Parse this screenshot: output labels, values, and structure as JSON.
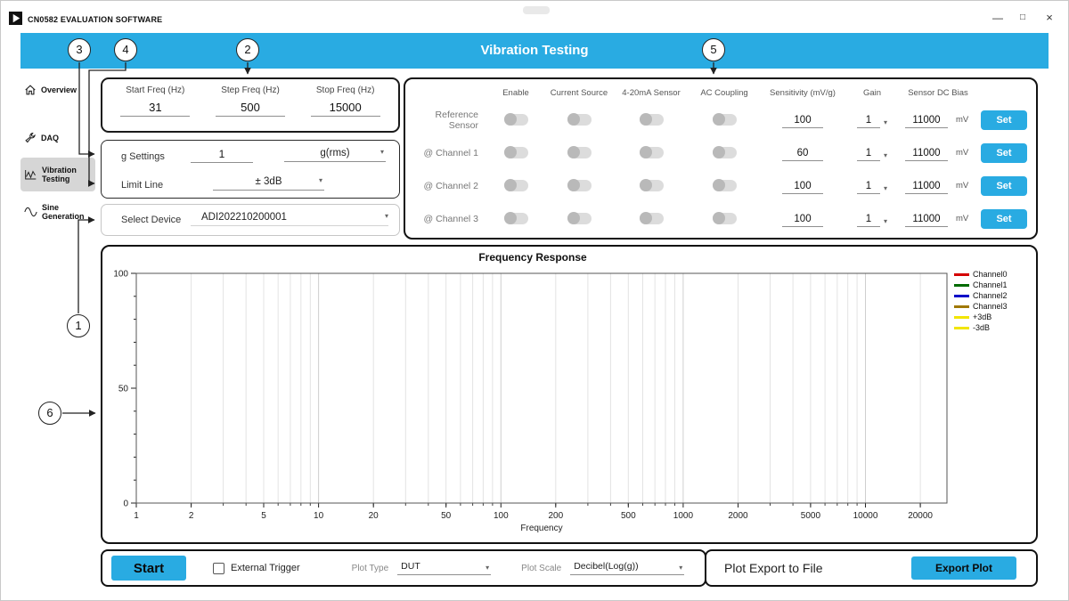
{
  "accent_color": "#29abe2",
  "window": {
    "title": "CN0582 EVALUATION SOFTWARE",
    "controls": {
      "minimize": "—",
      "maximize": "□",
      "close": "×"
    }
  },
  "header": {
    "title": "Vibration Testing"
  },
  "sidebar": {
    "items": [
      {
        "label": "Overview"
      },
      {
        "label": "DAQ"
      },
      {
        "label": "Vibration Testing"
      },
      {
        "label": "Sine Generation"
      }
    ]
  },
  "freq_panel": {
    "fields": [
      {
        "label": "Start Freq (Hz)",
        "value": "31"
      },
      {
        "label": "Step Freq (Hz)",
        "value": "500"
      },
      {
        "label": "Stop Freq (Hz)",
        "value": "15000"
      }
    ]
  },
  "settings_panel": {
    "g_settings": {
      "label": "g Settings",
      "value": "1",
      "unit": "g(rms)"
    },
    "limit_line": {
      "label": "Limit Line",
      "value": "± 3dB"
    },
    "select_device": {
      "label": "Select Device",
      "value": "ADI202210200001"
    }
  },
  "channel_panel": {
    "columns": [
      "Enable",
      "Current Source",
      "4-20mA Sensor",
      "AC Coupling",
      "Sensitivity (mV/g)",
      "Gain",
      "Sensor DC Bias"
    ],
    "unit": "mV",
    "set_label": "Set",
    "rows": [
      {
        "label": "Reference Sensor",
        "enable": false,
        "current_source": false,
        "sensor_4_20ma": false,
        "ac_coupling": false,
        "sensitivity": "100",
        "gain": "1",
        "dc_bias": "11000"
      },
      {
        "label": "@ Channel 1",
        "enable": false,
        "current_source": false,
        "sensor_4_20ma": false,
        "ac_coupling": false,
        "sensitivity": "60",
        "gain": "1",
        "dc_bias": "11000"
      },
      {
        "label": "@ Channel 2",
        "enable": false,
        "current_source": false,
        "sensor_4_20ma": false,
        "ac_coupling": false,
        "sensitivity": "100",
        "gain": "1",
        "dc_bias": "11000"
      },
      {
        "label": "@ Channel 3",
        "enable": false,
        "current_source": false,
        "sensor_4_20ma": false,
        "ac_coupling": false,
        "sensitivity": "100",
        "gain": "1",
        "dc_bias": "11000"
      }
    ]
  },
  "chart_data": {
    "type": "line",
    "title": "Frequency Response",
    "xlabel": "Frequency",
    "ylabel": "",
    "x_scale": "log",
    "xlim": [
      1,
      28000
    ],
    "ylim": [
      0,
      100
    ],
    "x_ticks": [
      1,
      2,
      5,
      10,
      20,
      50,
      100,
      200,
      500,
      1000,
      2000,
      5000,
      10000,
      20000
    ],
    "y_ticks": [
      0,
      50,
      100
    ],
    "grid": "vertical-log-minor",
    "legend_position": "right",
    "series": [
      {
        "name": "Channel0",
        "color": "#d40000",
        "values": []
      },
      {
        "name": "Channel1",
        "color": "#006b00",
        "values": []
      },
      {
        "name": "Channel2",
        "color": "#0000c8",
        "values": []
      },
      {
        "name": "Channel3",
        "color": "#a07800",
        "values": []
      },
      {
        "name": "+3dB",
        "color": "#f2e500",
        "values": []
      },
      {
        "name": "-3dB",
        "color": "#f2e500",
        "values": []
      }
    ]
  },
  "bottom_bar": {
    "start_label": "Start",
    "external_trigger_label": "External Trigger",
    "plot_type_label": "Plot Type",
    "plot_type_value": "DUT",
    "plot_scale_label": "Plot Scale",
    "plot_scale_value": "Decibel(Log(g))",
    "export_section_title": "Plot Export to File",
    "export_button_label": "Export Plot"
  },
  "callouts": [
    {
      "number": "1"
    },
    {
      "number": "2"
    },
    {
      "number": "3"
    },
    {
      "number": "4"
    },
    {
      "number": "5"
    },
    {
      "number": "6"
    }
  ]
}
